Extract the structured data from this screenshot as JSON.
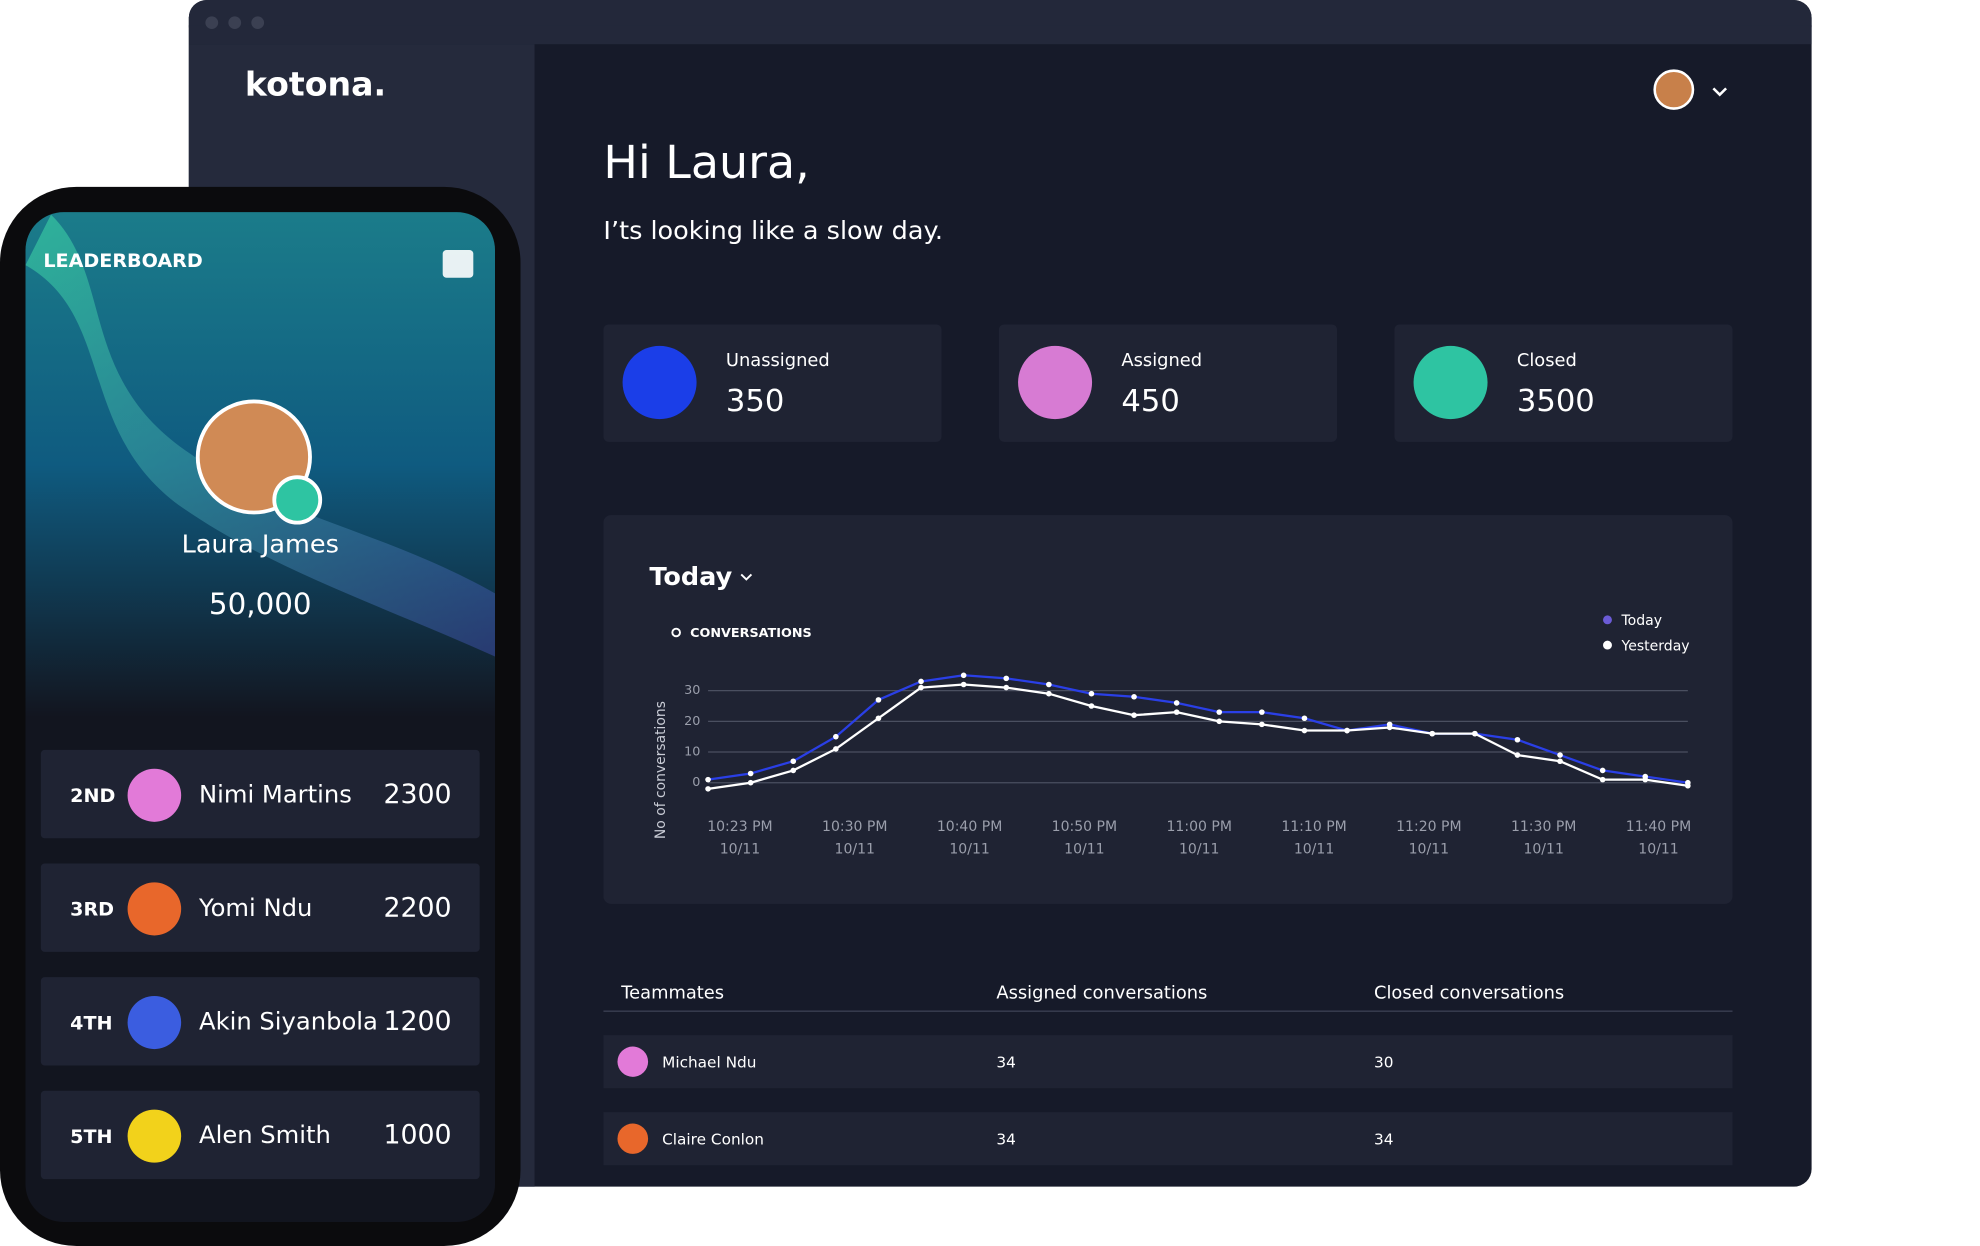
{
  "browser": {
    "logo": "kotona."
  },
  "dashboard": {
    "greeting": "Hi Laura,",
    "subtitle": "I’ts looking like a slow day.",
    "stats": [
      {
        "label": "Unassigned",
        "value": 350
      },
      {
        "label": "Assigned",
        "value": 450
      },
      {
        "label": "Closed",
        "value": 3500
      }
    ],
    "chart": {
      "type": "line",
      "period": "Today",
      "title": "CONVERSATIONS",
      "y_label": "No of conversations",
      "ylim": [
        -3,
        36
      ],
      "yticks": [
        0,
        10,
        20,
        30
      ],
      "grid": true,
      "x_labels": [
        {
          "time": "10:23 PM",
          "date": "10/11"
        },
        {
          "time": "10:30 PM",
          "date": "10/11"
        },
        {
          "time": "10:40 PM",
          "date": "10/11"
        },
        {
          "time": "10:50 PM",
          "date": "10/11"
        },
        {
          "time": "11:00 PM",
          "date": "10/11"
        },
        {
          "time": "11:10 PM",
          "date": "10/11"
        },
        {
          "time": "11:20 PM",
          "date": "10/11"
        },
        {
          "time": "11:30 PM",
          "date": "10/11"
        },
        {
          "time": "11:40 PM",
          "date": "10/11"
        }
      ],
      "series": [
        {
          "name": "Today",
          "color": "#2a3fe6",
          "values": [
            1,
            3,
            7,
            15,
            27,
            33,
            35,
            34,
            32,
            29,
            28,
            26,
            23,
            23,
            21,
            17,
            19,
            16,
            16,
            14,
            9,
            4,
            2,
            0
          ]
        },
        {
          "name": "Yesterday",
          "color": "#ffffff",
          "values": [
            -2,
            0,
            4,
            11,
            21,
            31,
            32,
            31,
            29,
            25,
            22,
            23,
            20,
            19,
            17,
            17,
            18,
            16,
            16,
            9,
            7,
            1,
            1,
            -1
          ]
        }
      ]
    },
    "table": {
      "columns": [
        "Teammates",
        "Assigned conversations",
        "Closed conversations"
      ],
      "rows": [
        [
          "Michael Ndu",
          34,
          30
        ],
        [
          "Claire Conlon",
          34,
          34
        ]
      ]
    }
  },
  "leaderboard": {
    "title": "LEADERBOARD",
    "leader": {
      "name": "Laura James",
      "score": "50,000"
    },
    "ranks": [
      {
        "rank": "2ND",
        "name": "Nimi Martins",
        "score": 2300
      },
      {
        "rank": "3RD",
        "name": "Yomi Ndu",
        "score": 2200
      },
      {
        "rank": "4TH",
        "name": "Akin Siyanbola",
        "score": 1200
      },
      {
        "rank": "5TH",
        "name": "Alen Smith",
        "score": 1000
      }
    ]
  }
}
